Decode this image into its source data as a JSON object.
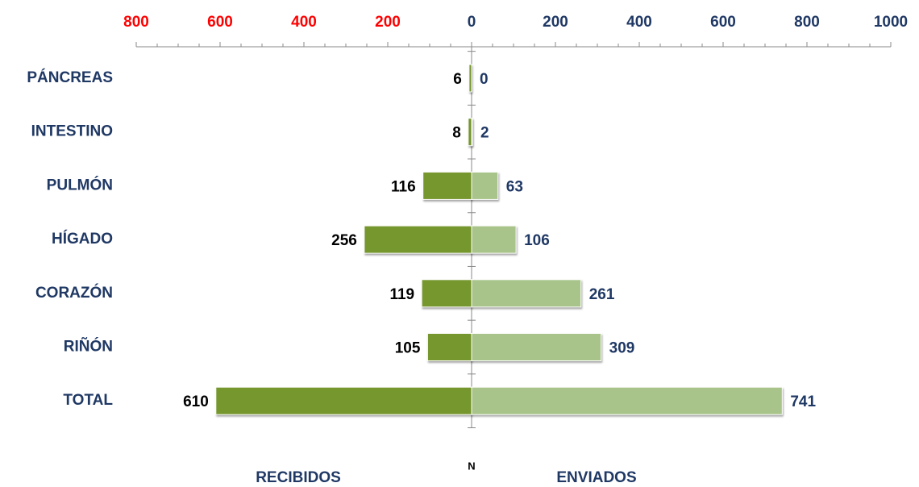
{
  "chart_data": {
    "type": "butterfly-bar",
    "categories": [
      "PÁNCREAS",
      "INTESTINO",
      "PULMÓN",
      "HÍGADO",
      "CORAZÓN",
      "RIÑÓN",
      "TOTAL"
    ],
    "series": [
      {
        "name": "RECIBIDOS",
        "color": "#76962e",
        "side": "left",
        "values": [
          6,
          8,
          116,
          256,
          119,
          105,
          610
        ]
      },
      {
        "name": "ENVIADOS",
        "color": "#a9c48a",
        "side": "right",
        "values": [
          0,
          2,
          63,
          106,
          261,
          309,
          741
        ]
      }
    ],
    "xlabel": "N",
    "xlim": [
      -800,
      1000
    ],
    "xticks": [
      {
        "value": -800,
        "label": "800"
      },
      {
        "value": -600,
        "label": "600"
      },
      {
        "value": -400,
        "label": "400"
      },
      {
        "value": -200,
        "label": "200"
      },
      0,
      200,
      400,
      600,
      800,
      1000
    ],
    "minor_ticks": true
  }
}
